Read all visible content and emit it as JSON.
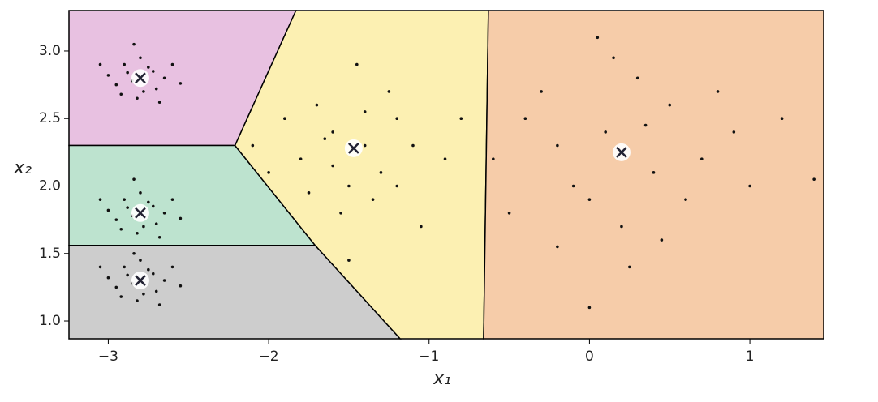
{
  "chart_data": {
    "type": "voronoi-scatter",
    "x_label": "x₁",
    "y_label": "x₂",
    "xlim": [
      -3.245,
      1.46
    ],
    "ylim": [
      0.868,
      3.3
    ],
    "xticks": [
      {
        "value": -3,
        "label": "−3"
      },
      {
        "value": -2,
        "label": "−2"
      },
      {
        "value": -1,
        "label": "−1"
      },
      0,
      1
    ],
    "yticks": [
      {
        "value": 1,
        "label": "1.0"
      },
      1.5,
      {
        "value": 2,
        "label": "2.0"
      },
      2.5,
      {
        "value": 3,
        "label": "3.0"
      }
    ],
    "grid": false,
    "regions": [
      {
        "color": "#e8c1e1",
        "x": [
          -3.245,
          -1.83,
          -2.21,
          -3.245
        ],
        "y": [
          3.3,
          3.3,
          2.3,
          2.3
        ]
      },
      {
        "color": "#bde3cf",
        "x": [
          -3.245,
          -2.21,
          -1.71,
          -3.245
        ],
        "y": [
          2.3,
          2.3,
          1.56,
          1.56
        ]
      },
      {
        "color": "#cdcdcd",
        "x": [
          -3.245,
          -1.71,
          -1.18,
          -3.245
        ],
        "y": [
          1.56,
          1.56,
          0.868,
          0.868
        ]
      },
      {
        "color": "#fcf0b2",
        "x": [
          -1.83,
          -0.63,
          -0.66,
          -1.18,
          -1.71,
          -2.21
        ],
        "y": [
          3.3,
          3.3,
          0.868,
          0.868,
          1.56,
          2.3
        ]
      },
      {
        "color": "#f6cca9",
        "x": [
          -0.63,
          1.46,
          1.46,
          -0.66
        ],
        "y": [
          3.3,
          3.3,
          0.868,
          0.868
        ]
      }
    ],
    "points": {
      "color": "#111111",
      "x": [
        -2.85,
        -2.72,
        -2.9,
        -2.78,
        -2.65,
        -2.95,
        -2.8,
        -2.7,
        -2.88,
        -3.0,
        -2.6,
        -2.82,
        -2.75,
        -2.92,
        -2.55,
        -3.05,
        -2.84,
        -2.68,
        -2.85,
        -2.72,
        -2.9,
        -2.78,
        -2.65,
        -2.95,
        -2.8,
        -2.7,
        -2.88,
        -3.0,
        -2.6,
        -2.82,
        -2.75,
        -2.92,
        -2.55,
        -3.05,
        -2.84,
        -2.68,
        -2.85,
        -2.72,
        -2.9,
        -2.78,
        -2.65,
        -2.95,
        -2.8,
        -2.7,
        -2.88,
        -3.0,
        -2.6,
        -2.82,
        -2.75,
        -2.92,
        -2.55,
        -3.05,
        -2.84,
        -2.68,
        -1.6,
        -1.3,
        -1.8,
        -1.2,
        -1.5,
        -1.7,
        -1.4,
        -1.9,
        -1.1,
        -1.55,
        -1.25,
        -2.0,
        -1.35,
        -1.65,
        -0.9,
        -1.45,
        -1.75,
        -1.05,
        -1.5,
        -2.1,
        -1.2,
        -1.6,
        -0.8,
        -1.4,
        0.1,
        0.4,
        -0.2,
        0.5,
        0.0,
        0.3,
        -0.4,
        0.7,
        0.2,
        -0.1,
        0.6,
        0.9,
        -0.5,
        0.35,
        0.15,
        -0.3,
        1.0,
        0.25,
        -0.6,
        0.8,
        0.45,
        -0.2,
        1.2,
        0.05,
        0.0,
        1.4
      ],
      "y": [
        2.78,
        2.85,
        2.9,
        2.7,
        2.8,
        2.75,
        2.95,
        2.72,
        2.84,
        2.82,
        2.9,
        2.65,
        2.88,
        2.68,
        2.76,
        2.9,
        3.05,
        2.62,
        1.78,
        1.85,
        1.9,
        1.7,
        1.8,
        1.75,
        1.95,
        1.72,
        1.84,
        1.82,
        1.9,
        1.65,
        1.88,
        1.68,
        1.76,
        1.9,
        2.05,
        1.62,
        1.28,
        1.35,
        1.4,
        1.2,
        1.3,
        1.25,
        1.45,
        1.22,
        1.34,
        1.32,
        1.4,
        1.15,
        1.38,
        1.18,
        1.26,
        1.4,
        1.5,
        1.12,
        2.4,
        2.1,
        2.2,
        2.5,
        2.0,
        2.6,
        2.3,
        2.5,
        2.3,
        1.8,
        2.7,
        2.1,
        1.9,
        2.35,
        2.2,
        2.9,
        1.95,
        1.7,
        1.45,
        2.3,
        2.0,
        2.15,
        2.5,
        2.55,
        2.4,
        2.1,
        2.3,
        2.6,
        1.9,
        2.8,
        2.5,
        2.2,
        1.7,
        2.0,
        1.9,
        2.4,
        1.8,
        2.45,
        2.95,
        2.7,
        2.0,
        1.4,
        2.2,
        2.7,
        1.6,
        1.55,
        2.5,
        3.1,
        1.1,
        2.05
      ]
    },
    "centroids": {
      "x": [
        -2.8,
        -2.8,
        -2.8,
        -1.47,
        0.2
      ],
      "y": [
        2.8,
        1.8,
        1.3,
        2.28,
        2.25
      ]
    }
  }
}
